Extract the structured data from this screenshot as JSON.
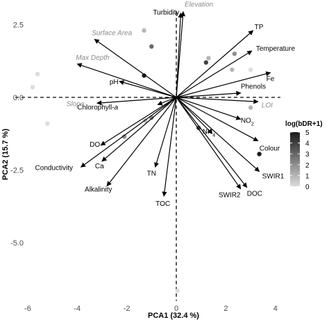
{
  "chart_data": {
    "type": "scatter",
    "subtype": "pca-biplot",
    "title": "",
    "xlabel": "PCA1 (32.4 %)",
    "ylabel": "PCA2 (15.7 %)",
    "xlim": [
      -6.5,
      4.2
    ],
    "ylim": [
      -7.0,
      2.95
    ],
    "xticks": [
      {
        "value": -6,
        "label": "-6"
      },
      {
        "value": -4,
        "label": "-4"
      },
      {
        "value": -2,
        "label": "-2"
      },
      {
        "value": 0,
        "label": "0"
      },
      {
        "value": 2,
        "label": "2"
      },
      {
        "value": 4,
        "label": "4"
      }
    ],
    "yticks": [
      {
        "value": 2.5,
        "label": "2.5"
      },
      {
        "value": 0,
        "label": "0.0"
      },
      {
        "value": -2.5,
        "label": "-2.5"
      },
      {
        "value": -5,
        "label": "-5.0"
      }
    ],
    "grid": false,
    "reference_lines": {
      "x": 0,
      "y": 0,
      "style": "dashed"
    },
    "legend": {
      "title": "log(bDR+1)",
      "placement": "right",
      "range": [
        0,
        5
      ],
      "ticks": [
        {
          "value": 5,
          "label": "5"
        },
        {
          "value": 4,
          "label": "4"
        },
        {
          "value": 3,
          "label": "3"
        },
        {
          "value": 2,
          "label": "2"
        },
        {
          "value": 1,
          "label": "1"
        },
        {
          "value": 0,
          "label": "0"
        }
      ],
      "colors": {
        "low": "#dcdcdc",
        "high": "#1a1a1a"
      }
    },
    "vectors": [
      {
        "name": "Turbidity",
        "x": 0.18,
        "y": 2.9,
        "supplementary": false
      },
      {
        "name": "Elevation",
        "x": 0.28,
        "y": 2.95,
        "supplementary": true
      },
      {
        "name": "TP",
        "x": 3.1,
        "y": 2.3,
        "supplementary": false
      },
      {
        "name": "Temperature",
        "x": 3.05,
        "y": 1.6,
        "supplementary": false
      },
      {
        "name": "Fe",
        "x": 3.8,
        "y": 0.85,
        "supplementary": false
      },
      {
        "name": "Phenols",
        "x": 2.6,
        "y": 0.15,
        "supplementary": false
      },
      {
        "name": "LOI",
        "x": 3.3,
        "y": -0.15,
        "supplementary": true
      },
      {
        "name": "NO2",
        "x": 2.6,
        "y": -0.75,
        "supplementary": false
      },
      {
        "name": "NH4",
        "x": 1.45,
        "y": -1.25,
        "supplementary": false
      },
      {
        "name": "Colour",
        "x": 3.3,
        "y": -1.5,
        "supplementary": false
      },
      {
        "name": "SWIR1",
        "x": 3.35,
        "y": -2.55,
        "supplementary": false
      },
      {
        "name": "SWIR2",
        "x": 2.6,
        "y": -3.15,
        "supplementary": false
      },
      {
        "name": "DOC",
        "x": 2.85,
        "y": -3.1,
        "supplementary": false
      },
      {
        "name": "TOC",
        "x": -0.5,
        "y": -3.4,
        "supplementary": false
      },
      {
        "name": "TN",
        "x": -0.85,
        "y": -2.4,
        "supplementary": false
      },
      {
        "name": "Alkalinity",
        "x": -2.8,
        "y": -3.05,
        "supplementary": false
      },
      {
        "name": "Ca",
        "x": -3.0,
        "y": -2.2,
        "supplementary": false
      },
      {
        "name": "Conductivity",
        "x": -3.85,
        "y": -2.4,
        "supplementary": false
      },
      {
        "name": "DO",
        "x": -3.05,
        "y": -1.65,
        "supplementary": false
      },
      {
        "name": "Chlorophyll-a",
        "x": -0.75,
        "y": -0.25,
        "supplementary": false
      },
      {
        "name": "Slope",
        "x": -3.2,
        "y": -0.2,
        "supplementary": true
      },
      {
        "name": "pH",
        "x": -2.3,
        "y": 0.55,
        "supplementary": false
      },
      {
        "name": "Max Depth",
        "x": -4.0,
        "y": 1.15,
        "supplementary": true
      },
      {
        "name": "Surface Area",
        "x": -3.3,
        "y": 2.0,
        "supplementary": true
      }
    ],
    "points": [
      {
        "x": -1.3,
        "y": 2.3,
        "value": 1
      },
      {
        "x": -1.0,
        "y": 1.75,
        "value": 3
      },
      {
        "x": -1.3,
        "y": 0.75,
        "value": 5
      },
      {
        "x": -5.6,
        "y": 0.8,
        "value": 0
      },
      {
        "x": -5.8,
        "y": 0.35,
        "value": 0
      },
      {
        "x": -5.2,
        "y": -0.9,
        "value": 0
      },
      {
        "x": -1.0,
        "y": -0.7,
        "value": 2
      },
      {
        "x": -2.1,
        "y": -1.35,
        "value": 2
      },
      {
        "x": -1.25,
        "y": -0.8,
        "value": 1
      },
      {
        "x": 1.3,
        "y": 1.35,
        "value": 1
      },
      {
        "x": 1.2,
        "y": 1.2,
        "value": 4
      },
      {
        "x": 2.35,
        "y": 1.5,
        "value": 2
      },
      {
        "x": 2.25,
        "y": 0.95,
        "value": 1
      },
      {
        "x": 3.0,
        "y": 0.95,
        "value": 0
      },
      {
        "x": 3.0,
        "y": -0.35,
        "value": 1
      },
      {
        "x": 0.9,
        "y": -1.05,
        "value": 4
      },
      {
        "x": 3.35,
        "y": -1.95,
        "value": 5
      },
      {
        "x": 0.05,
        "y": -6.65,
        "value": 0
      }
    ]
  }
}
